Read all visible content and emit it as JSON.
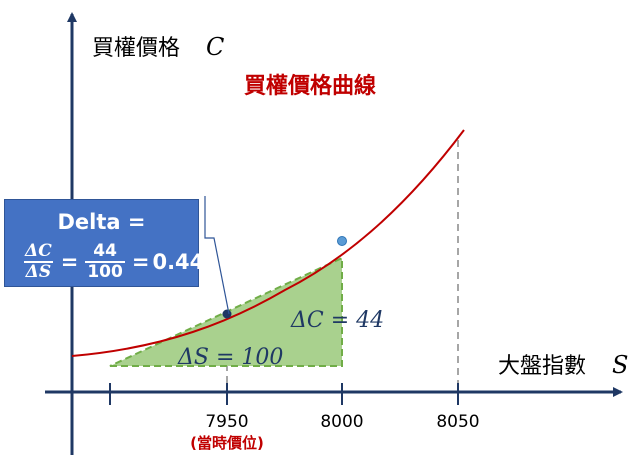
{
  "y_axis_label": "買權價格",
  "y_axis_symbol": "C",
  "x_axis_label": "大盤指數",
  "x_axis_symbol": "S",
  "curve_title": "買權價格曲線",
  "delta_s_label": "ΔS = 100",
  "delta_c_label": "ΔC = 44",
  "current_note": "(當時價位)",
  "callout": {
    "title": "Delta =",
    "delta_c": "ΔC",
    "delta_s": "ΔS",
    "eq1": "=",
    "num": "44",
    "den": "100",
    "eq2": "=",
    "result": "0.44"
  },
  "colors": {
    "curve": "#c00000",
    "axis": "#1f3864",
    "triangle_fill": "#a9d18e",
    "callout_bg": "#4472c4",
    "red_text": "#c00000"
  },
  "chart_data": {
    "type": "line",
    "x_ticks": [
      "7950",
      "8000",
      "8050"
    ],
    "points": [
      {
        "x": 7950,
        "note": "當時價位"
      },
      {
        "x": 8000
      }
    ],
    "delta_s": 100,
    "delta_c": 44,
    "delta": 0.44
  }
}
